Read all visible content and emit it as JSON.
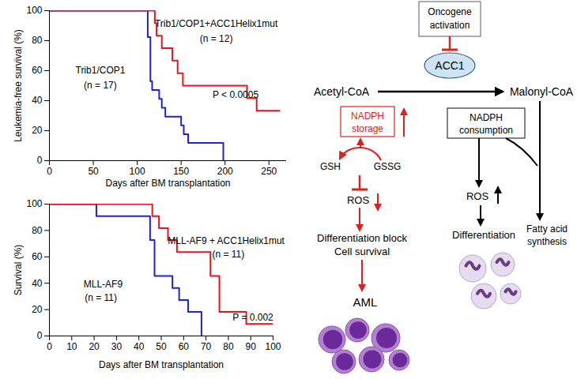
{
  "chart_data": [
    {
      "type": "line",
      "x_label": "Days after BM transplantation",
      "y_label": "Leukemia-free survival (%)",
      "xlim": [
        0,
        270
      ],
      "xticks": [
        0,
        50,
        100,
        150,
        200,
        250
      ],
      "ylim": [
        0,
        100
      ],
      "yticks": [
        0,
        20,
        40,
        60,
        80,
        100
      ],
      "series": [
        {
          "name": "Trib1/COP1",
          "n_label": "(n = 17)",
          "color": "#1f22d8",
          "line_style": "step",
          "x": [
            0,
            112,
            115,
            117,
            125,
            128,
            132,
            150,
            153,
            158,
            198
          ],
          "values": [
            100,
            82.4,
            52.9,
            47.1,
            41.2,
            35.3,
            29.4,
            23.5,
            17.6,
            11.8,
            0
          ]
        },
        {
          "name": "Trib1/COP1+ACC1Helix1mut",
          "n_label": "(n = 12)",
          "color": "#e8141c",
          "line_style": "step",
          "x": [
            0,
            120,
            122,
            128,
            140,
            146,
            152,
            225,
            236,
            262
          ],
          "values": [
            100,
            91.7,
            83.3,
            75,
            66.7,
            58.3,
            50,
            41.7,
            33.3,
            33.3
          ]
        }
      ],
      "annotations": [
        {
          "text": "P < 0.0005"
        }
      ]
    },
    {
      "type": "line",
      "x_label": "Days after BM transplantation",
      "y_label": "Survival (%)",
      "xlim": [
        0,
        100
      ],
      "xticks": [
        0,
        10,
        20,
        30,
        40,
        50,
        60,
        70,
        80,
        90,
        100
      ],
      "ylim": [
        0,
        100
      ],
      "yticks": [
        0,
        20,
        40,
        60,
        80,
        100
      ],
      "series": [
        {
          "name": "MLL-AF9",
          "n_label": "(n = 11)",
          "color": "#1f22d8",
          "line_style": "step",
          "x": [
            0,
            21,
            45,
            47,
            55,
            58,
            62,
            68
          ],
          "values": [
            100,
            90.9,
            72.7,
            45.5,
            36.4,
            27.3,
            18.2,
            0
          ]
        },
        {
          "name": "MLL-AF9 + ACC1Helix1mut",
          "n_label": "(n = 11)",
          "color": "#e8141c",
          "line_style": "step",
          "x": [
            0,
            46,
            49,
            53,
            57,
            72,
            76,
            88,
            100
          ],
          "values": [
            100,
            90.9,
            81.8,
            72.7,
            63.6,
            45.5,
            18.2,
            9.1,
            9.1
          ]
        }
      ],
      "annotations": [
        {
          "text": "P = 0.002"
        }
      ]
    }
  ],
  "diagram": {
    "nodes": {
      "oncogene": [
        "Oncogene",
        "activation"
      ],
      "acc1": "ACC1",
      "acetyl_coa": "Acetyl-CoA",
      "malonyl_coa": "Malonyl-CoA",
      "nadph_storage": [
        "NADPH",
        "storage"
      ],
      "nadph_consumption": [
        "NADPH",
        "consumption"
      ],
      "gsh": "GSH",
      "gssg": "GSSG",
      "ros_left": "ROS",
      "ros_right": "ROS",
      "differentiation_block": [
        "Differentiation block",
        "Cell survival"
      ],
      "aml": "AML",
      "differentiation": "Differentiation",
      "fatty_acid_synthesis": [
        "Fatty acid",
        "synthesis"
      ]
    }
  }
}
